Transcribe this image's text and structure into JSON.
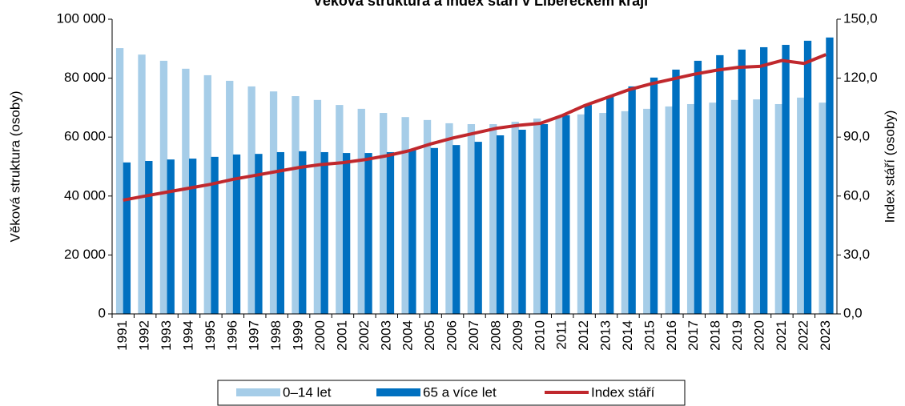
{
  "chart_data": {
    "type": "bar",
    "title": "Věková struktura a index stáří v Libereckém kraji",
    "y_label": "Věková struktura (osoby)",
    "y2_label": "Index  stáří (osoby)",
    "categories": [
      "1991",
      "1992",
      "1993",
      "1994",
      "1995",
      "1996",
      "1997",
      "1998",
      "1999",
      "2000",
      "2001",
      "2002",
      "2003",
      "2004",
      "2005",
      "2006",
      "2007",
      "2008",
      "2009",
      "2010",
      "2011",
      "2012",
      "2013",
      "2014",
      "2015",
      "2016",
      "2017",
      "2018",
      "2019",
      "2020",
      "2021",
      "2022",
      "2023"
    ],
    "series": [
      {
        "name": "0–14 let",
        "type": "bar",
        "color": "#a6cde8",
        "values": [
          90200,
          88000,
          85900,
          83200,
          81000,
          79100,
          77200,
          75500,
          73900,
          72600,
          70900,
          69600,
          68200,
          66800,
          65800,
          64700,
          64400,
          64400,
          65200,
          66300,
          66600,
          67700,
          68200,
          68800,
          69600,
          70400,
          71200,
          71700,
          72600,
          72800,
          71200,
          73400,
          71700
        ]
      },
      {
        "name": "65 a více let",
        "type": "bar",
        "color": "#0070c0",
        "values": [
          51400,
          51900,
          52400,
          52700,
          53300,
          54100,
          54300,
          54900,
          55200,
          54900,
          54600,
          54600,
          54900,
          55700,
          56300,
          57300,
          58400,
          60600,
          62500,
          64400,
          67400,
          70900,
          73900,
          77200,
          80200,
          82900,
          85900,
          87800,
          89700,
          90500,
          91300,
          92700,
          93800
        ]
      },
      {
        "name": "Index stáří",
        "type": "line",
        "axis": "y2",
        "color": "#c0282d",
        "values": [
          57.9,
          60,
          62,
          64,
          66,
          68.5,
          70.5,
          72.5,
          74.5,
          76,
          77,
          78.5,
          80.5,
          83,
          86.5,
          89.5,
          92,
          94.5,
          96,
          97,
          101,
          106,
          110,
          114,
          117,
          119.5,
          122,
          124,
          125.5,
          126,
          129,
          127.5,
          132
        ]
      }
    ],
    "ylim": [
      0,
      100000
    ],
    "yticks": [
      0,
      {
        "value": 20000,
        "label": "20 000"
      },
      {
        "value": 40000,
        "label": "40 000"
      },
      {
        "value": 60000,
        "label": "60 000"
      },
      {
        "value": 80000,
        "label": "80 000"
      },
      {
        "value": 100000,
        "label": "100 000"
      }
    ],
    "y2lim": [
      0,
      150
    ],
    "y2ticks": [
      {
        "value": 0,
        "label": "0,0"
      },
      {
        "value": 30,
        "label": "30,0"
      },
      {
        "value": 60,
        "label": "60,0"
      },
      {
        "value": 90,
        "label": "90,0"
      },
      {
        "value": 120,
        "label": "120,0"
      },
      {
        "value": 150,
        "label": "150,0"
      }
    ],
    "legend": "bottom"
  }
}
